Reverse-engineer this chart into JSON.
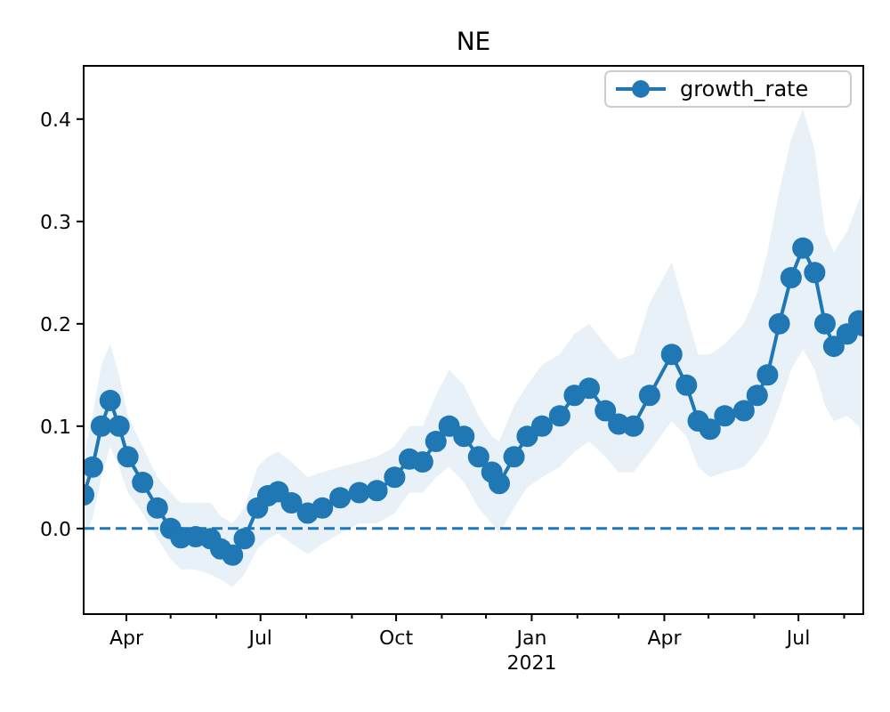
{
  "chart_data": {
    "type": "line",
    "title": "NE",
    "x": [
      "2020-03-03",
      "2020-03-09",
      "2020-03-15",
      "2020-03-21",
      "2020-03-27",
      "2020-04-02",
      "2020-04-12",
      "2020-04-22",
      "2020-05-01",
      "2020-05-08",
      "2020-05-18",
      "2020-05-28",
      "2020-06-04",
      "2020-06-12",
      "2020-06-20",
      "2020-06-29",
      "2020-07-06",
      "2020-07-13",
      "2020-07-22",
      "2020-08-02",
      "2020-08-12",
      "2020-08-24",
      "2020-09-06",
      "2020-09-18",
      "2020-09-30",
      "2020-10-10",
      "2020-10-19",
      "2020-10-28",
      "2020-11-06",
      "2020-11-16",
      "2020-11-26",
      "2020-12-05",
      "2020-12-10",
      "2020-12-20",
      "2020-12-29",
      "2021-01-08",
      "2021-01-20",
      "2021-01-30",
      "2021-02-09",
      "2021-02-20",
      "2021-03-01",
      "2021-03-11",
      "2021-03-22",
      "2021-04-06",
      "2021-04-16",
      "2021-04-24",
      "2021-05-02",
      "2021-05-12",
      "2021-05-25",
      "2021-06-03",
      "2021-06-10",
      "2021-06-18",
      "2021-06-26",
      "2021-07-04",
      "2021-07-12",
      "2021-07-19",
      "2021-07-25",
      "2021-08-03",
      "2021-08-11",
      "2021-08-14"
    ],
    "series": [
      {
        "name": "growth_rate",
        "color": "#1f77b4",
        "values": [
          0.033,
          0.06,
          0.1,
          0.125,
          0.1,
          0.07,
          0.045,
          0.02,
          0.0,
          -0.009,
          -0.008,
          -0.01,
          -0.02,
          -0.026,
          -0.01,
          0.02,
          0.032,
          0.036,
          0.025,
          0.015,
          0.02,
          0.03,
          0.035,
          0.037,
          0.05,
          0.068,
          0.065,
          0.085,
          0.1,
          0.09,
          0.07,
          0.055,
          0.044,
          0.07,
          0.09,
          0.1,
          0.11,
          0.13,
          0.137,
          0.115,
          0.102,
          0.1,
          0.13,
          0.17,
          0.14,
          0.105,
          0.097,
          0.11,
          0.115,
          0.13,
          0.15,
          0.2,
          0.245,
          0.274,
          0.25,
          0.2,
          0.178,
          0.19,
          0.203,
          0.198
        ],
        "lower": [
          -0.01,
          0.01,
          0.05,
          0.08,
          0.06,
          0.035,
          0.015,
          -0.01,
          -0.03,
          -0.04,
          -0.04,
          -0.045,
          -0.05,
          -0.057,
          -0.045,
          -0.02,
          -0.01,
          -0.005,
          -0.015,
          -0.025,
          -0.015,
          -0.005,
          0.005,
          0.005,
          0.015,
          0.035,
          0.035,
          0.05,
          0.06,
          0.045,
          0.02,
          0.005,
          -0.005,
          0.02,
          0.04,
          0.05,
          0.06,
          0.075,
          0.085,
          0.07,
          0.055,
          0.055,
          0.075,
          0.105,
          0.09,
          0.06,
          0.05,
          0.055,
          0.06,
          0.075,
          0.09,
          0.12,
          0.155,
          0.175,
          0.155,
          0.12,
          0.105,
          0.11,
          0.1,
          0.08
        ],
        "upper": [
          0.07,
          0.11,
          0.16,
          0.18,
          0.15,
          0.11,
          0.08,
          0.05,
          0.035,
          0.025,
          0.025,
          0.025,
          0.012,
          0.005,
          0.02,
          0.06,
          0.07,
          0.075,
          0.065,
          0.05,
          0.055,
          0.06,
          0.065,
          0.07,
          0.08,
          0.1,
          0.1,
          0.13,
          0.155,
          0.14,
          0.11,
          0.09,
          0.085,
          0.12,
          0.14,
          0.16,
          0.17,
          0.19,
          0.2,
          0.18,
          0.165,
          0.17,
          0.22,
          0.26,
          0.21,
          0.17,
          0.17,
          0.18,
          0.2,
          0.23,
          0.27,
          0.33,
          0.38,
          0.41,
          0.37,
          0.29,
          0.27,
          0.29,
          0.32,
          0.33
        ]
      }
    ],
    "xlim": [
      "2020-03-03",
      "2021-08-14"
    ],
    "xticks": [
      {
        "value": "2020-04-01",
        "label": "Apr"
      },
      {
        "value": "2020-05-01",
        "label": null
      },
      {
        "value": "2020-06-01",
        "label": null
      },
      {
        "value": "2020-07-01",
        "label": "Jul"
      },
      {
        "value": "2020-08-01",
        "label": null
      },
      {
        "value": "2020-09-01",
        "label": null
      },
      {
        "value": "2020-10-01",
        "label": "Oct"
      },
      {
        "value": "2020-11-01",
        "label": null
      },
      {
        "value": "2020-12-01",
        "label": null
      },
      {
        "value": "2021-01-01",
        "label": "Jan\n2021"
      },
      {
        "value": "2021-02-01",
        "label": null
      },
      {
        "value": "2021-03-01",
        "label": null
      },
      {
        "value": "2021-04-01",
        "label": "Apr"
      },
      {
        "value": "2021-05-01",
        "label": null
      },
      {
        "value": "2021-06-01",
        "label": null
      },
      {
        "value": "2021-07-01",
        "label": "Jul"
      },
      {
        "value": "2021-08-01",
        "label": null
      }
    ],
    "ylim": [
      -0.0836,
      0.452
    ],
    "yticks": [
      {
        "value": 0,
        "label": "0.0"
      },
      {
        "value": 0.1,
        "label": "0.1"
      },
      {
        "value": 0.2,
        "label": "0.2"
      },
      {
        "value": 0.3,
        "label": "0.3"
      },
      {
        "value": 0.4,
        "label": "0.4"
      }
    ],
    "ref_lines": [
      {
        "axis": "y",
        "value": 0,
        "color": "#1f77b4",
        "line_style": "dashed"
      }
    ],
    "legend": "top right",
    "marker": "circle",
    "line_style": "solid",
    "grid": false
  }
}
